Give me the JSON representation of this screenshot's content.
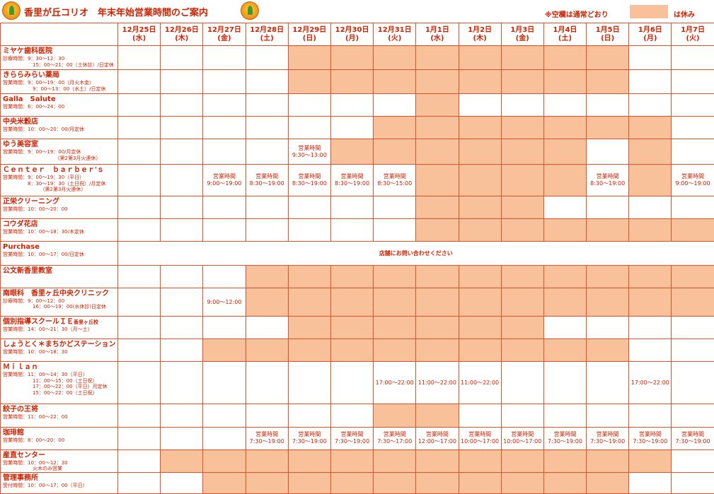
{
  "header": {
    "title": "香里が丘コリオ　年末年始営業時間のご案内",
    "legend_note": "※空欄は通常どおり",
    "legend_label": "は休み",
    "closed_color": "#f8c19a",
    "accent_color": "#cc2200",
    "logo_icon": "koryo-mascot-icon"
  },
  "dates": [
    {
      "date": "12月25日",
      "dow": "(水)"
    },
    {
      "date": "12月26日",
      "dow": "(木)"
    },
    {
      "date": "12月27日",
      "dow": "(金)"
    },
    {
      "date": "12月28日",
      "dow": "(土)"
    },
    {
      "date": "12月29日",
      "dow": "(日)"
    },
    {
      "date": "12月30日",
      "dow": "(月)"
    },
    {
      "date": "12月31日",
      "dow": "(火)"
    },
    {
      "date": "1月1日",
      "dow": "(水)"
    },
    {
      "date": "1月2日",
      "dow": "(木)"
    },
    {
      "date": "1月3日",
      "dow": "(金)"
    },
    {
      "date": "1月4日",
      "dow": "(土)"
    },
    {
      "date": "1月5日",
      "dow": "(日)"
    },
    {
      "date": "1月6日",
      "dow": "(月)"
    },
    {
      "date": "1月7日",
      "dow": "(火)"
    }
  ],
  "stores": [
    {
      "name": "ミヤケ歯科医院",
      "info": "診療時間：9：30〜12：30\n　　　　　　15：00〜21：00（土休診）/日定休",
      "cells": [
        "",
        "",
        "",
        "",
        "X",
        "X",
        "X",
        "X",
        "X",
        "X",
        "X",
        "X",
        "",
        ""
      ]
    },
    {
      "name": "きららみらい薬局",
      "info": "営業時間：9：00〜19：00（月火木金）\n　　　　　　9：00〜13：00（水土）/日定休",
      "cells": [
        "",
        "",
        "",
        "",
        "X",
        "X",
        "X",
        "X",
        "X",
        "X",
        "X",
        "X",
        "",
        ""
      ]
    },
    {
      "name": "Galla　Salute",
      "info": "営業時間：6：00〜24：00",
      "cells": [
        "",
        "",
        "",
        "",
        "",
        "",
        "",
        "X",
        "",
        "",
        "",
        "",
        "",
        ""
      ]
    },
    {
      "name": "中央米穀店",
      "info": "営業時間：10：00〜20：00/月定休",
      "cells": [
        "",
        "",
        "",
        "",
        "",
        "",
        "X",
        "X",
        "X",
        "X",
        "X",
        "X",
        "X",
        ""
      ]
    },
    {
      "name": "ゆう美容室",
      "info": "営業時間：9：00〜19：00/月定休\n　　　　　　　　　　　（第2第3月火連休）",
      "cells": [
        "",
        "",
        "",
        "",
        "営業時間\n9:30〜13:00",
        "X",
        "X",
        "X",
        "X",
        "X",
        "X",
        "",
        "X",
        ""
      ]
    },
    {
      "name": "Ｃｅｎｔｅｒ　ｂａｒｂｅｒ'ｓ",
      "info": "営業時間：9：00〜19：30（平日）\n　　　　　8：30〜19：30（土日祝）/月定休\n　　　　　　　　（第2第3月火連休）",
      "cells": [
        "",
        "",
        "営業時間\n9:00〜19:00",
        "営業時間\n8:30〜19:00",
        "営業時間\n8:30〜19:00",
        "営業時間\n8:30〜19:00",
        "営業時間\n8:30〜15:00",
        "X",
        "X",
        "X",
        "X",
        "営業時間\n8:30〜19:00",
        "X",
        "営業時間\n9:00〜19:00"
      ]
    },
    {
      "name": "正栄クリーニング",
      "info": "営業時間：10：00〜20：00",
      "cells": [
        "",
        "",
        "",
        "",
        "",
        "",
        "",
        "X",
        "X",
        "X",
        "",
        "",
        "",
        ""
      ]
    },
    {
      "name": "コウダ花店",
      "info": "営業時間：10：00〜18：30/木定休",
      "cells": [
        "",
        "",
        "",
        "",
        "",
        "",
        "",
        "X",
        "X",
        "X",
        "X",
        "X",
        "X",
        "X"
      ]
    },
    {
      "name": "Purchase",
      "info": "営業時間：10：00〜17：00/日定休",
      "contact": "店舗にお問い合わせください"
    },
    {
      "name": "公文新香里教室",
      "info": "",
      "cells": [
        "",
        "",
        "",
        "X",
        "X",
        "X",
        "X",
        "X",
        "X",
        "X",
        "X",
        "X",
        "X",
        "X"
      ]
    },
    {
      "name": "南眼科　香里ヶ丘中央クリニック",
      "info": "診療時間：9：00〜12：00\n　　　　　　16：00〜19：00(水休診)日定休",
      "cells": [
        "",
        "",
        "9:00〜12:00",
        "X",
        "X",
        "X",
        "X",
        "X",
        "X",
        "X",
        "X",
        "X",
        "X",
        "X"
      ]
    },
    {
      "name": "個別指導スクールＩＥ",
      "name_suffix": "香里ヶ丘校",
      "info": "営業時間：14：00〜21：30（月〜土）",
      "cells": [
        "",
        "",
        "",
        "",
        "X",
        "X",
        "X",
        "X",
        "X",
        "X",
        "",
        "",
        "",
        ""
      ]
    },
    {
      "name": "しょうとく＊まちかどステーション",
      "info": "営業時間：10：00〜18：30",
      "cells": [
        "",
        "",
        "X",
        "X",
        "X",
        "X",
        "X",
        "X",
        "X",
        "X",
        "X",
        "X",
        "",
        ""
      ]
    },
    {
      "name": "Ｍｉｌａｎ",
      "info": "営業時間：11：00〜14：30（平日）\n　　　　　　11：00〜15：00（土日祝）\n　　　　　　17：00〜22：00（平日）月定休\n　　　　　　15：00〜22：00（土日祝）",
      "cells": [
        "",
        "",
        "",
        "",
        "",
        "",
        "17:00〜22:00",
        "11:00〜22:00",
        "11:00〜22:00",
        "",
        "",
        "",
        "17:00〜22:00",
        ""
      ]
    },
    {
      "name": "餃子の王将",
      "info": "営業時間：11：00〜22：00",
      "cells": [
        "",
        "",
        "",
        "",
        "",
        "",
        "X",
        "X",
        "",
        "",
        "",
        "",
        "",
        ""
      ]
    },
    {
      "name": "珈琲館",
      "info": "営業時間：8：00〜20：00",
      "cells": [
        "",
        "",
        "",
        "営業時間\n7:30〜19:00",
        "営業時間\n7:30〜19:00",
        "営業時間\n7:30〜19:00",
        "営業時間\n7:30〜17:00",
        "営業時間\n12:00〜17:00",
        "営業時間\n10:00〜17:00",
        "営業時間\n10:00〜17:00",
        "営業時間\n7:30〜19:00",
        "営業時間\n7:30〜19:00",
        "営業時間\n7:30〜19:00",
        "営業時間\n7:30〜19:00"
      ]
    },
    {
      "name": "産直センター",
      "info": "営業時間：10：00〜12：30\n　　　　　　火木のみ営業",
      "cells": [
        "",
        "X",
        "X",
        "X",
        "X",
        "X",
        "X",
        "X",
        "X",
        "X",
        "X",
        "X",
        "X",
        ""
      ]
    },
    {
      "name": "管理事務所",
      "info": "受付時間：10：00〜17：00（平日）",
      "cells": [
        "",
        "",
        "X",
        "X",
        "X",
        "X",
        "X",
        "X",
        "X",
        "X",
        "X",
        "X",
        "",
        ""
      ]
    }
  ]
}
